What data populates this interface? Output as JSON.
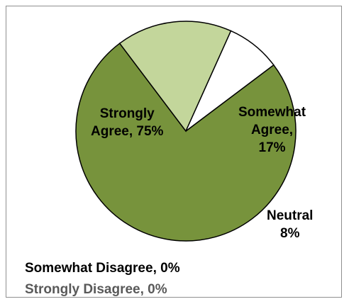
{
  "chart_data": {
    "type": "pie",
    "slices": [
      {
        "label": "Strongly Agree",
        "value": 75,
        "color": "#77933c"
      },
      {
        "label": "Somewhat Agree",
        "value": 17,
        "color": "#c3d69b"
      },
      {
        "label": "Neutral",
        "value": 8,
        "color": "#ffffff"
      },
      {
        "label": "Somewhat Disagree",
        "value": 0,
        "color": "#77933c"
      },
      {
        "label": "Strongly Disagree",
        "value": 0,
        "color": "#4f6228"
      }
    ],
    "data_labels": {
      "strongly_agree": [
        "Strongly",
        "Agree, 75%"
      ],
      "somewhat_agree": [
        "Somewhat",
        "Agree,",
        "17%"
      ],
      "neutral": [
        "Neutral",
        "8%"
      ],
      "somewhat_disagree": "Somewhat Disagree, 0%",
      "strongly_disagree": "Strongly Disagree, 0%"
    },
    "title": "",
    "legend": "none",
    "slice_border_color": "#000000"
  }
}
